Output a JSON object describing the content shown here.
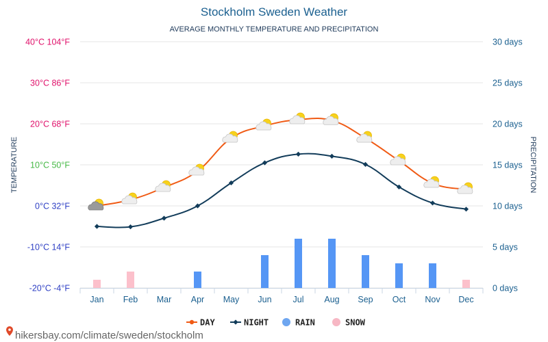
{
  "chart_data": {
    "type": "line",
    "title": "Stockholm Sweden Weather",
    "subtitle": "AVERAGE MONTHLY TEMPERATURE AND PRECIPITATION",
    "ylabel_left": "TEMPERATURE",
    "ylabel_right": "PRECIPITATION",
    "categories": [
      "Jan",
      "Feb",
      "Mar",
      "Apr",
      "May",
      "Jun",
      "Jul",
      "Aug",
      "Sep",
      "Oct",
      "Nov",
      "Dec"
    ],
    "temp_ticks": [
      {
        "c": 40,
        "label": "40°C 104°F",
        "color": "#e0126b"
      },
      {
        "c": 30,
        "label": "30°C 86°F",
        "color": "#e0126b"
      },
      {
        "c": 20,
        "label": "20°C 68°F",
        "color": "#e0126b"
      },
      {
        "c": 10,
        "label": "10°C 50°F",
        "color": "#45b845"
      },
      {
        "c": 0,
        "label": "0°C 32°F",
        "color": "#2e3fc4"
      },
      {
        "c": -10,
        "label": "-10°C 14°F",
        "color": "#2e3fc4"
      },
      {
        "c": -20,
        "label": "-20°C -4°F",
        "color": "#2e3fc4"
      }
    ],
    "days_ticks": [
      {
        "d": 30,
        "label": "30 days"
      },
      {
        "d": 25,
        "label": "25 days"
      },
      {
        "d": 20,
        "label": "20 days"
      },
      {
        "d": 15,
        "label": "15 days"
      },
      {
        "d": 10,
        "label": "10 days"
      },
      {
        "d": 5,
        "label": "5 days"
      },
      {
        "d": 0,
        "label": "0 days"
      }
    ],
    "temp_range": [
      -20,
      40
    ],
    "days_range": [
      0,
      30
    ],
    "series": [
      {
        "name": "DAY",
        "color": "#f05a14",
        "values": [
          0,
          1.5,
          4.5,
          8.5,
          16.5,
          19.5,
          21,
          20.8,
          16.5,
          11,
          5.5,
          4
        ]
      },
      {
        "name": "NIGHT",
        "color": "#123c5a",
        "values": [
          -5,
          -5.1,
          -3,
          0,
          5.6,
          10.5,
          12.6,
          12.1,
          10.1,
          4.6,
          0.7,
          -0.8
        ]
      }
    ],
    "rain_days": [
      0,
      0,
      0,
      2,
      0,
      4,
      6,
      6,
      4,
      3,
      3,
      0
    ],
    "snow_days": [
      1,
      2,
      0,
      0,
      0,
      0,
      0,
      0,
      0,
      0,
      0,
      1
    ],
    "weather_icons": [
      "cloudy-sun",
      "partly-sunny",
      "partly-sunny",
      "partly-sunny",
      "partly-sunny",
      "partly-sunny",
      "partly-sunny",
      "partly-sunny",
      "partly-sunny",
      "partly-sunny",
      "partly-sunny",
      "partly-sunny"
    ],
    "legend": [
      {
        "label": "DAY",
        "kind": "line",
        "color": "#f05a14"
      },
      {
        "label": "NIGHT",
        "kind": "line",
        "color": "#123c5a"
      },
      {
        "label": "RAIN",
        "kind": "dot",
        "color": "#6ea6f0"
      },
      {
        "label": "SNOW",
        "kind": "dot",
        "color": "#f7b7c4"
      }
    ],
    "rain_color": "#5596f5",
    "snow_color": "#fcc0cb"
  },
  "source": "hikersbay.com/climate/sweden/stockholm"
}
